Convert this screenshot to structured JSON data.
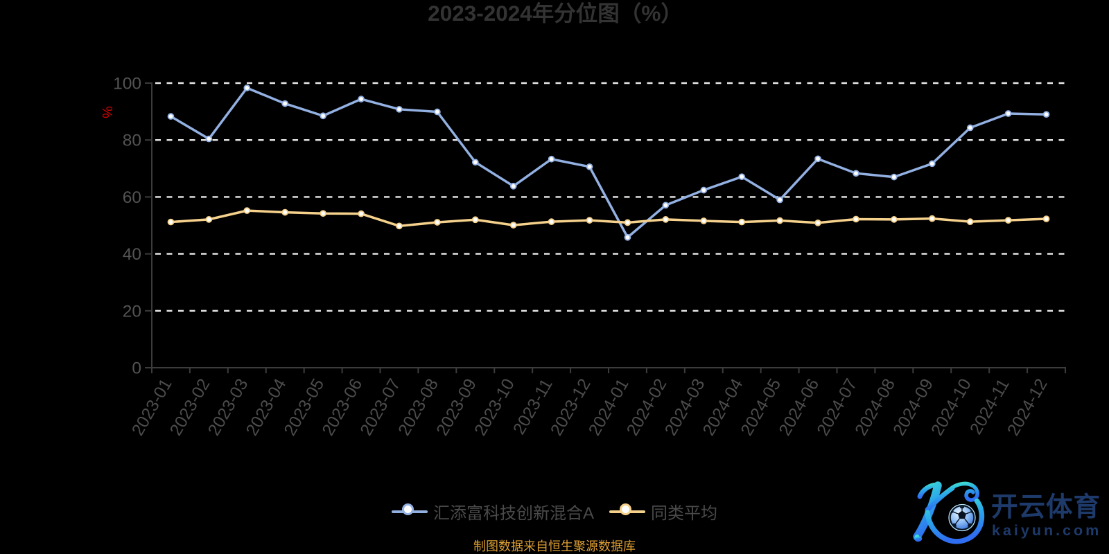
{
  "chart_data": {
    "type": "line",
    "title": "2023-2024年分位图（%）",
    "y_axis_name": "%",
    "ylim": [
      0,
      100
    ],
    "y_ticks": [
      0,
      20,
      40,
      60,
      80,
      100
    ],
    "grid": "horizontal dashed lines, legend at bottom",
    "categories": [
      "2023-01",
      "2023-02",
      "2023-03",
      "2023-04",
      "2023-05",
      "2023-06",
      "2023-07",
      "2023-08",
      "2023-09",
      "2023-10",
      "2023-11",
      "2023-12",
      "2024-01",
      "2024-02",
      "2024-03",
      "2024-04",
      "2024-05",
      "2024-06",
      "2024-07",
      "2024-08",
      "2024-09",
      "2024-10",
      "2024-11",
      "2024-12"
    ],
    "series": [
      {
        "name": "汇添富科技创新混合A",
        "color": "#93b0e2",
        "values": [
          88.3,
          80.4,
          98.3,
          92.8,
          88.5,
          94.4,
          90.8,
          89.9,
          72.2,
          63.8,
          73.3,
          70.6,
          45.8,
          57.1,
          62.4,
          67.1,
          59.0,
          73.4,
          68.3,
          67.0,
          71.7,
          84.3,
          89.3,
          89.0
        ]
      },
      {
        "name": "同类平均",
        "color": "#f5d18c",
        "values": [
          51.2,
          52.1,
          55.2,
          54.6,
          54.2,
          54.1,
          49.8,
          51.1,
          52.0,
          50.1,
          51.3,
          51.8,
          51.0,
          52.1,
          51.6,
          51.2,
          51.7,
          50.9,
          52.2,
          52.1,
          52.4,
          51.3,
          51.8,
          52.3
        ]
      }
    ]
  },
  "footer": {
    "note": "制图数据来自恒生聚源数据库"
  },
  "watermark": {
    "brand": "开云体育",
    "domain": "kaiyun.com"
  },
  "colors": {
    "background": "#000000",
    "title": "#333333",
    "axis_line": "#3c3c3c",
    "grid_line": "#ebebeb",
    "axis_label": "#4c4c4c",
    "y_axis_name": "#d40000",
    "series_fund": "#93b0e2",
    "series_average": "#f5d18c",
    "footer": "#dd9e33",
    "watermark_text": "#1f3b6e",
    "logo_gradient_top": "#3fe0d0",
    "logo_gradient_bottom": "#2f6ef0"
  }
}
